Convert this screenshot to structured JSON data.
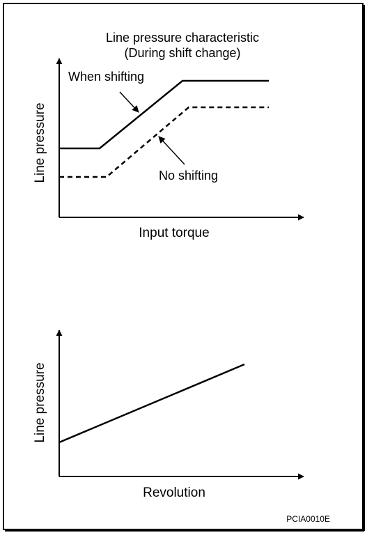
{
  "top_chart": {
    "title_line1": "Line pressure characteristic",
    "title_line2": "(During shift change)",
    "ylabel": "Line pressure",
    "xlabel": "Input torque",
    "series_when_shifting": "When shifting",
    "series_no_shifting": "No shifting"
  },
  "bottom_chart": {
    "ylabel": "Line pressure",
    "xlabel": "Revolution"
  },
  "figure_code": "PCIA0010E"
}
